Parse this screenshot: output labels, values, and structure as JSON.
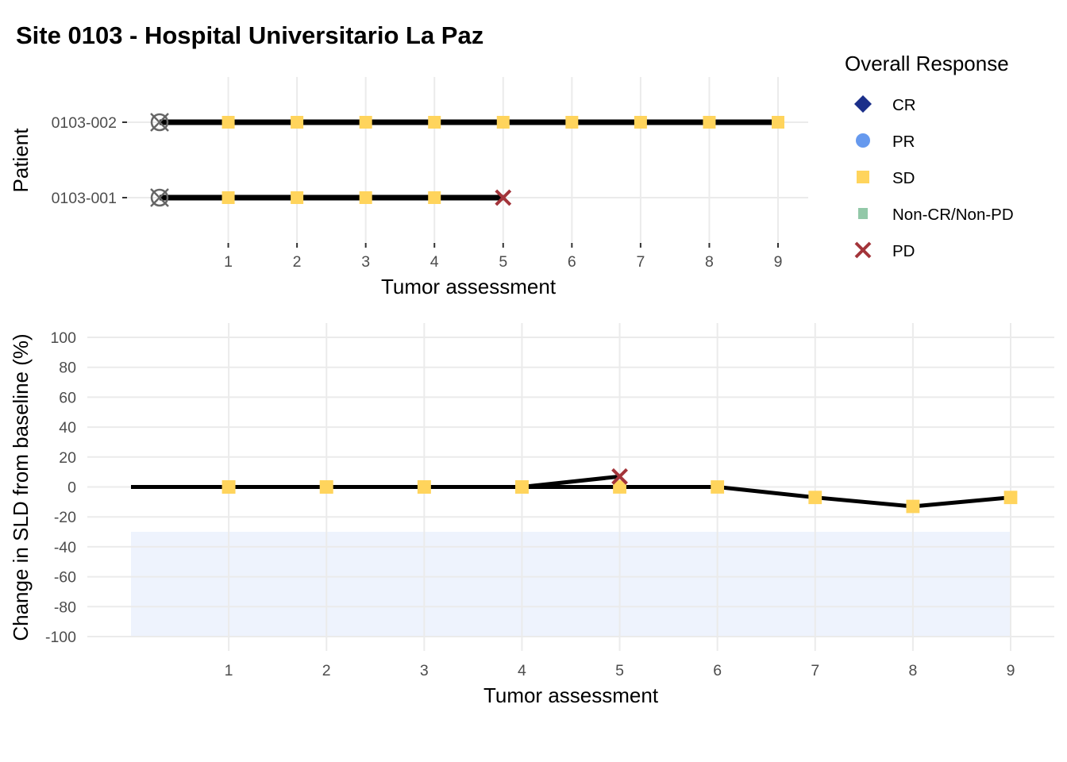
{
  "title": "Site 0103 - Hospital Universitario La Paz",
  "colors": {
    "CR": "#1b2f8a",
    "PR": "#6699ee",
    "SD": "#ffd45c",
    "Non-CR/Non-PD": "#92c8a8",
    "PD": "#a3343a",
    "line": "#000000",
    "baseline_marker": "#666666",
    "response_band": "#eef3fd",
    "grid": "#ebebeb"
  },
  "legend": {
    "title": "Overall Response",
    "items": [
      {
        "label": "CR",
        "shape": "diamond"
      },
      {
        "label": "PR",
        "shape": "circle"
      },
      {
        "label": "SD",
        "shape": "square"
      },
      {
        "label": "Non-CR/Non-PD",
        "shape": "small-square"
      },
      {
        "label": "PD",
        "shape": "cross"
      }
    ]
  },
  "chart_data": [
    {
      "type": "swimmer",
      "xlabel": "Tumor assessment",
      "ylabel": "Patient",
      "x_ticks": [
        1,
        2,
        3,
        4,
        5,
        6,
        7,
        8,
        9
      ],
      "xlim": [
        0,
        9
      ],
      "patients": [
        {
          "id": "0103-002",
          "last_assessment": 9,
          "baseline_marker": 0,
          "responses": [
            {
              "x": 1,
              "response": "SD"
            },
            {
              "x": 2,
              "response": "SD"
            },
            {
              "x": 3,
              "response": "SD"
            },
            {
              "x": 4,
              "response": "SD"
            },
            {
              "x": 5,
              "response": "SD"
            },
            {
              "x": 6,
              "response": "SD"
            },
            {
              "x": 7,
              "response": "SD"
            },
            {
              "x": 8,
              "response": "SD"
            },
            {
              "x": 9,
              "response": "SD"
            }
          ]
        },
        {
          "id": "0103-001",
          "last_assessment": 5,
          "baseline_marker": 0,
          "responses": [
            {
              "x": 1,
              "response": "SD"
            },
            {
              "x": 2,
              "response": "SD"
            },
            {
              "x": 3,
              "response": "SD"
            },
            {
              "x": 4,
              "response": "SD"
            },
            {
              "x": 5,
              "response": "PD"
            }
          ]
        }
      ]
    },
    {
      "type": "line",
      "xlabel": "Tumor assessment",
      "ylabel": "Change in SLD from baseline (%)",
      "x_ticks": [
        1,
        2,
        3,
        4,
        5,
        6,
        7,
        8,
        9
      ],
      "xlim": [
        0,
        9
      ],
      "y_ticks": [
        100,
        80,
        60,
        40,
        20,
        0,
        -20,
        -40,
        -60,
        -80,
        -100
      ],
      "y_tick_labels": [
        "100",
        "80",
        "60",
        "40",
        "20",
        "0",
        "-20",
        "-40",
        "-60",
        "-80",
        "-100"
      ],
      "ylim": [
        -100,
        100
      ],
      "response_band": {
        "y_from": -100,
        "y_to": -30,
        "x_from": 0,
        "x_to": 9
      },
      "series": [
        {
          "points": [
            {
              "x": 0,
              "y": 0,
              "response": null
            },
            {
              "x": 1,
              "y": 0,
              "response": "SD"
            },
            {
              "x": 2,
              "y": 0,
              "response": "SD"
            },
            {
              "x": 3,
              "y": 0,
              "response": "SD"
            },
            {
              "x": 4,
              "y": 0,
              "response": "SD"
            },
            {
              "x": 5,
              "y": 7,
              "response": "PD"
            }
          ]
        },
        {
          "points": [
            {
              "x": 0,
              "y": 0,
              "response": null
            },
            {
              "x": 1,
              "y": 0,
              "response": "SD"
            },
            {
              "x": 2,
              "y": 0,
              "response": "SD"
            },
            {
              "x": 3,
              "y": 0,
              "response": "SD"
            },
            {
              "x": 4,
              "y": 0,
              "response": "SD"
            },
            {
              "x": 5,
              "y": 0,
              "response": "SD"
            },
            {
              "x": 6,
              "y": 0,
              "response": "SD"
            },
            {
              "x": 7,
              "y": -7,
              "response": "SD"
            },
            {
              "x": 8,
              "y": -13,
              "response": "SD"
            },
            {
              "x": 9,
              "y": -7,
              "response": "SD"
            }
          ]
        }
      ]
    }
  ]
}
